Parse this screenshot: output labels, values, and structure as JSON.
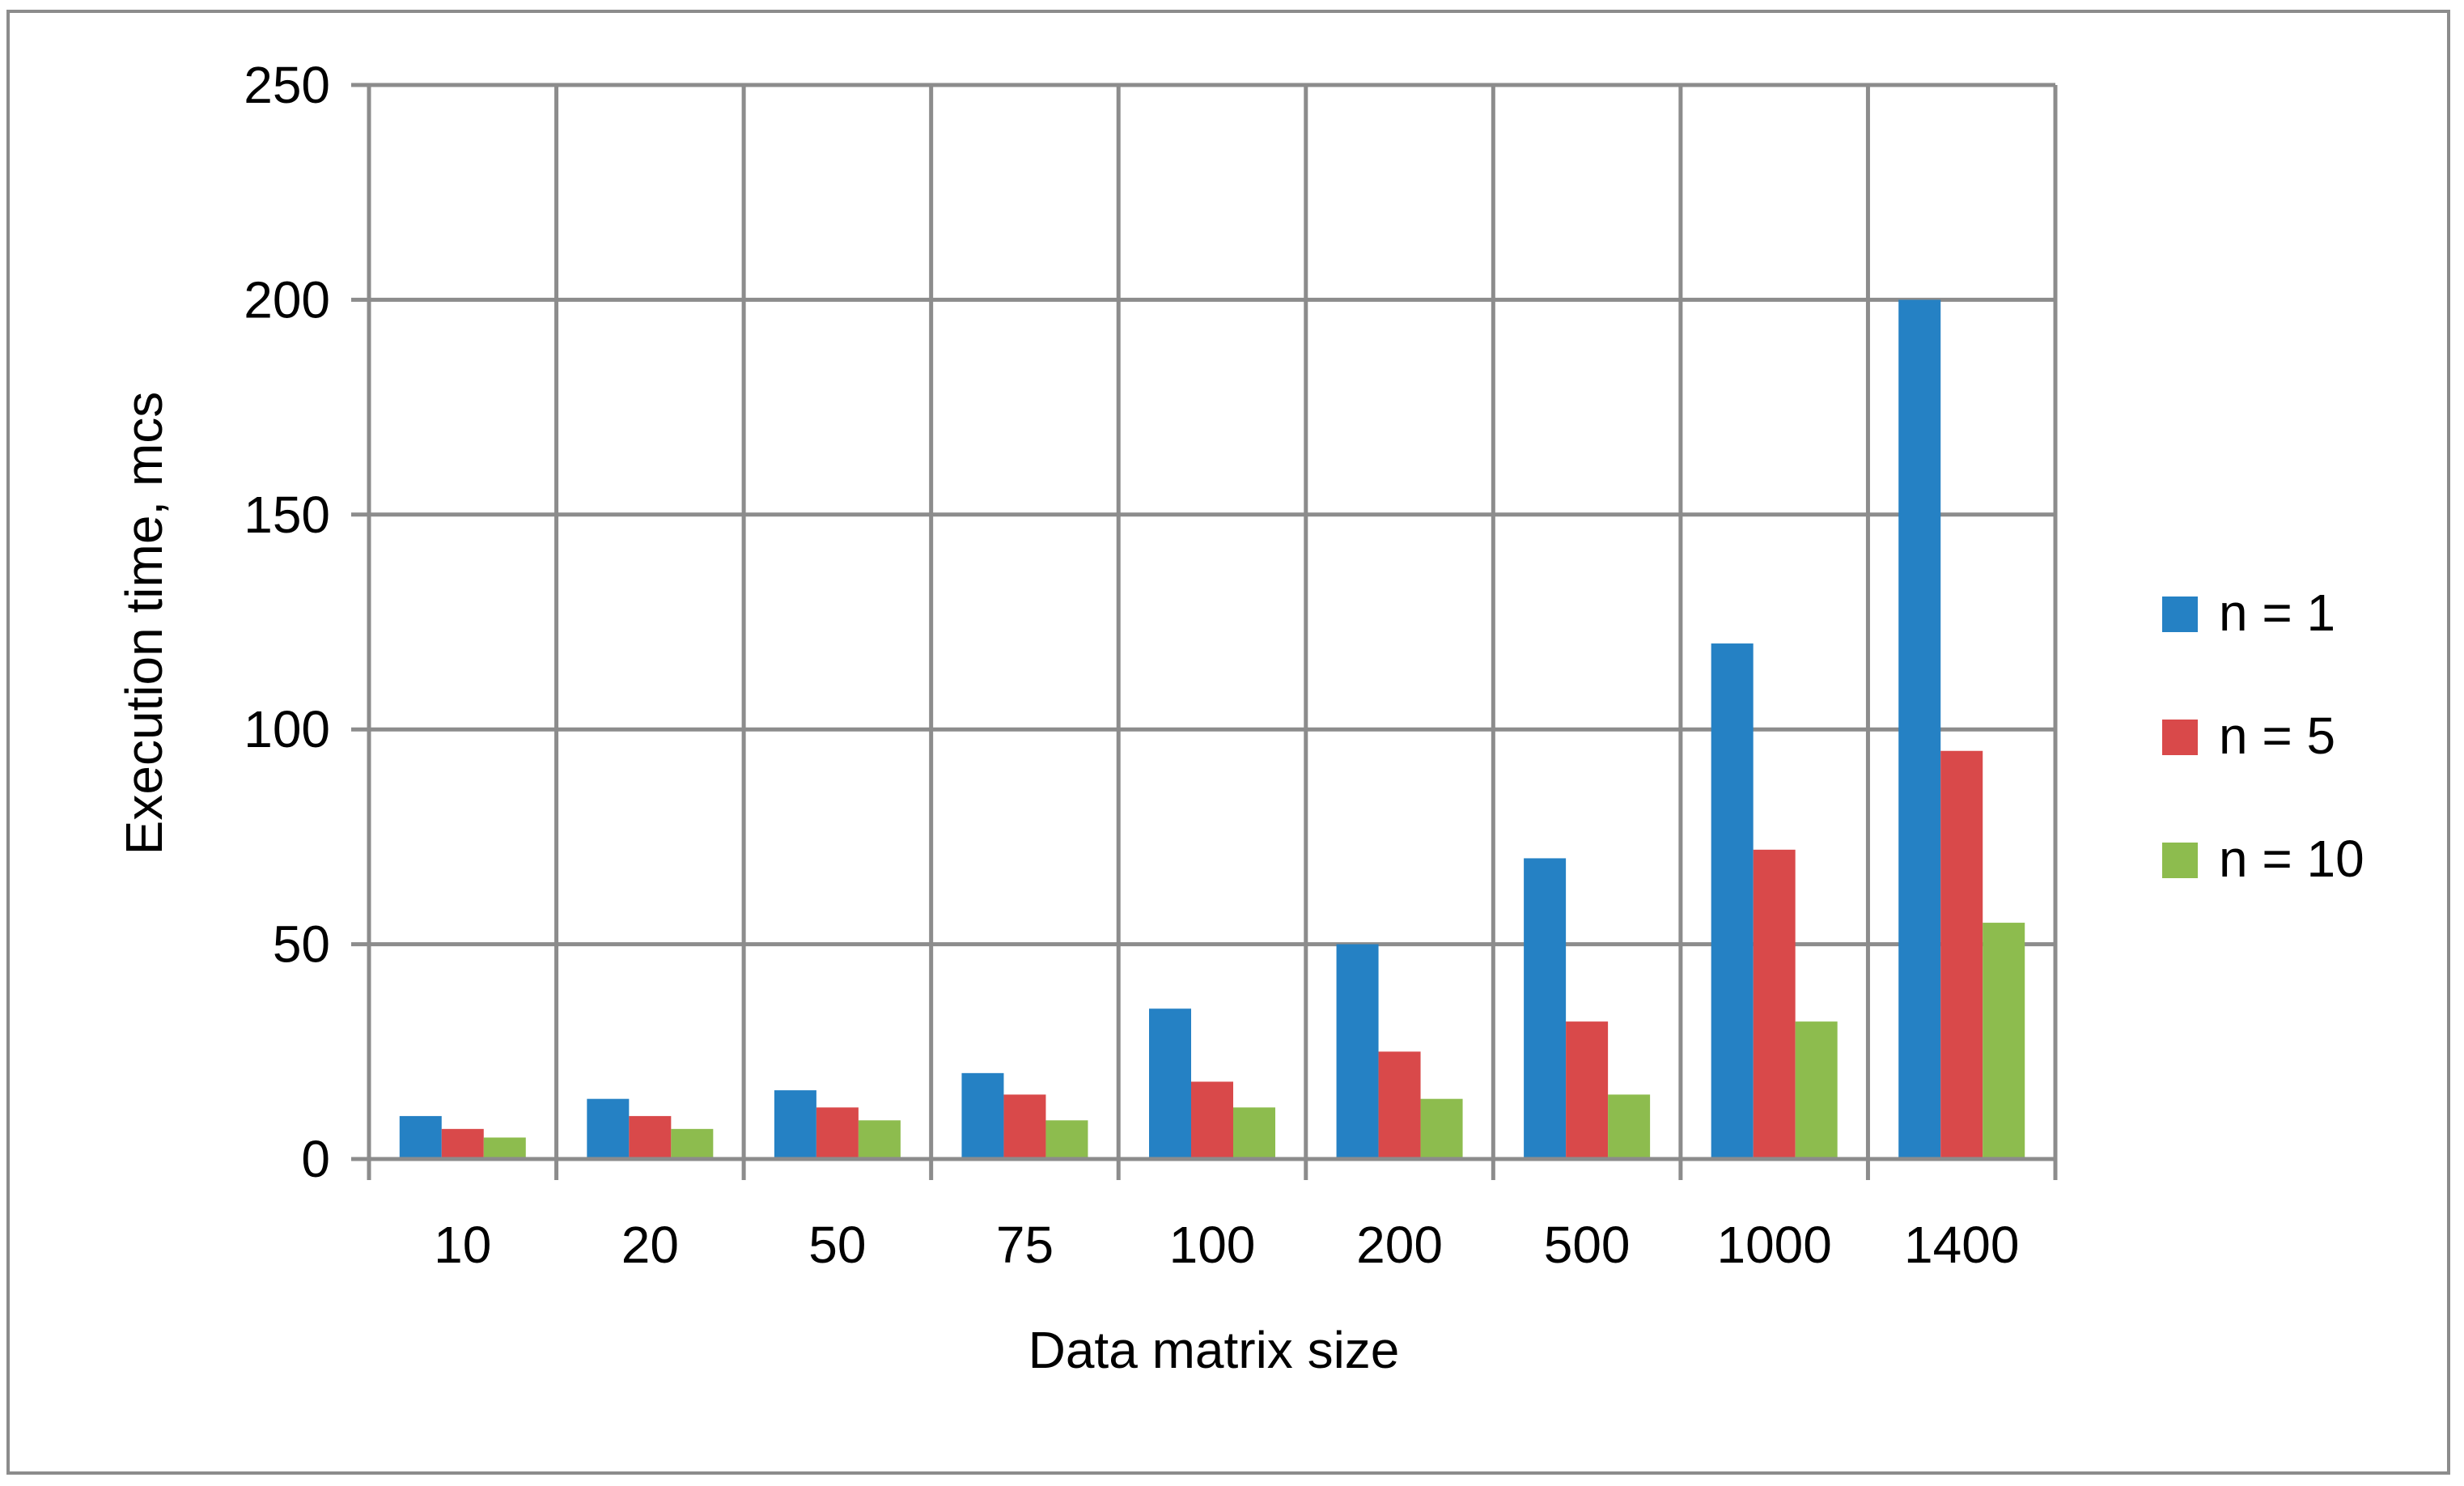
{
  "chart_data": {
    "type": "bar",
    "title": "",
    "xlabel": "Data matrix size",
    "ylabel": "Execution time, mcs",
    "categories": [
      "10",
      "20",
      "50",
      "75",
      "100",
      "200",
      "500",
      "1000",
      "1400"
    ],
    "series": [
      {
        "name": "n = 1",
        "color": "#2581C4",
        "values": [
          10,
          14,
          16,
          20,
          35,
          50,
          70,
          120,
          200
        ]
      },
      {
        "name": "n = 5",
        "color": "#D9494A",
        "values": [
          7,
          10,
          12,
          15,
          18,
          25,
          32,
          72,
          95
        ]
      },
      {
        "name": "n = 10",
        "color": "#8DBC4E",
        "values": [
          5,
          7,
          9,
          9,
          12,
          14,
          15,
          32,
          55
        ]
      }
    ],
    "ylim": [
      0,
      250
    ],
    "yticks": [
      "0",
      "50",
      "100",
      "150",
      "200",
      "250"
    ],
    "grid": true,
    "legend_position": "right"
  }
}
